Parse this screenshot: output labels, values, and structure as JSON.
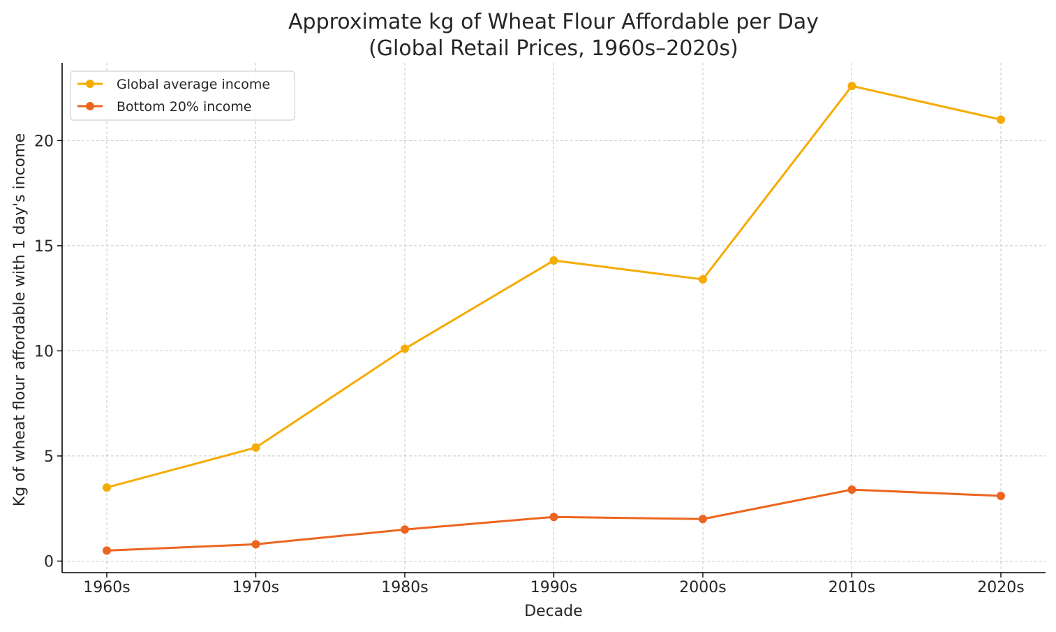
{
  "chart_data": {
    "type": "line",
    "title": "Approximate kg of Wheat Flour Affordable per Day",
    "subtitle": "(Global Retail Prices, 1960s–2020s)",
    "xlabel": "Decade",
    "ylabel": "Kg of wheat flour affordable with 1 day's income",
    "categories": [
      "1960s",
      "1970s",
      "1980s",
      "1990s",
      "2000s",
      "2010s",
      "2020s"
    ],
    "ylim": [
      -0.55,
      23.7
    ],
    "yticks": [
      0,
      5,
      10,
      15,
      20
    ],
    "grid": true,
    "legend_position": "top-left",
    "series": [
      {
        "name": "Global average income",
        "color": "#f5ab00",
        "values": [
          3.5,
          5.4,
          10.1,
          14.3,
          13.4,
          22.6,
          21.0
        ]
      },
      {
        "name": "Bottom 20% income",
        "color": "#ec6520",
        "values": [
          0.5,
          0.8,
          1.5,
          2.1,
          2.0,
          3.4,
          3.1
        ]
      }
    ]
  }
}
